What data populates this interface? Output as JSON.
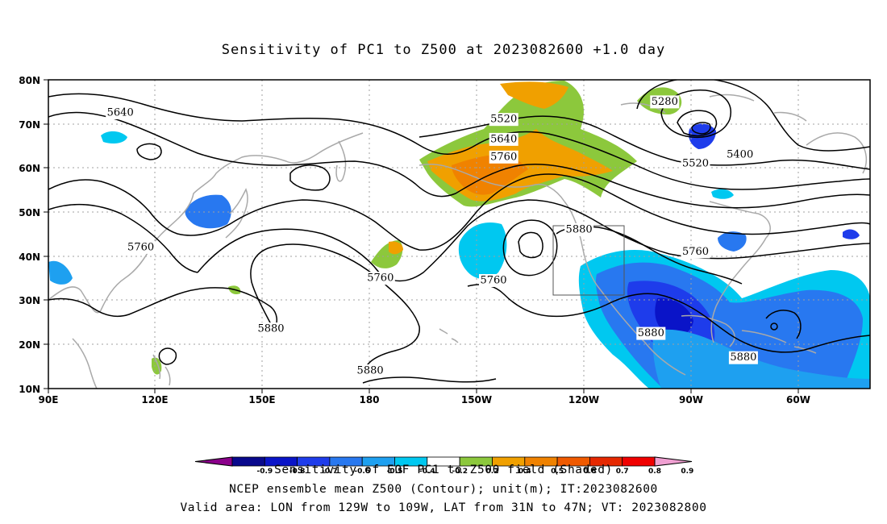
{
  "title": "Sensitivity of PC1 to Z500 at 2023082600 +1.0 day",
  "captions": {
    "line1": "Sensitivity of EOF PC1 to Z500 field (Shaded)",
    "line2": "NCEP ensemble mean Z500 (Contour); unit(m); IT:2023082600",
    "line3": "Valid area: LON from 129W to 109W, LAT from 31N to 47N; VT: 2023082800"
  },
  "axes": {
    "lat_labels": [
      "80N",
      "70N",
      "60N",
      "50N",
      "40N",
      "30N",
      "20N",
      "10N"
    ],
    "lon_labels": [
      "90E",
      "120E",
      "150E",
      "180",
      "150W",
      "120W",
      "90W",
      "60W"
    ]
  },
  "contour_labels": [
    {
      "text": "5640",
      "lon": 111,
      "lat": 72.5
    },
    {
      "text": "5520",
      "lon": -137,
      "lat": 71
    },
    {
      "text": "5640",
      "lon": -137,
      "lat": 66.5
    },
    {
      "text": "5760",
      "lon": -137,
      "lat": 62.5
    },
    {
      "text": "5280",
      "lon": -90,
      "lat": 75
    },
    {
      "text": "5400",
      "lon": -68,
      "lat": 63
    },
    {
      "text": "5520",
      "lon": -81,
      "lat": 61
    },
    {
      "text": "5760",
      "lon": 117,
      "lat": 42
    },
    {
      "text": "5760",
      "lon": -173,
      "lat": 35
    },
    {
      "text": "5760",
      "lon": -140,
      "lat": 34.5
    },
    {
      "text": "5880",
      "lon": -115,
      "lat": 46
    },
    {
      "text": "5760",
      "lon": -81,
      "lat": 41
    },
    {
      "text": "5880",
      "lon": 155,
      "lat": 23.5
    },
    {
      "text": "5880",
      "lon": -176,
      "lat": 14
    },
    {
      "text": "5880",
      "lon": -94,
      "lat": 22.5
    },
    {
      "text": "5880",
      "lon": -67,
      "lat": 17
    }
  ],
  "colorbar": {
    "labels": [
      "-0.9",
      "-0.8",
      "-0.7",
      "-0.6",
      "-0.5",
      "-0.4",
      "-0.2",
      "0.2",
      "0.4",
      "0.5",
      "0.6",
      "0.7",
      "0.8",
      "0.9"
    ],
    "colors": [
      "#8b008b",
      "#08088c",
      "#0a14c8",
      "#1e3ceb",
      "#2878f0",
      "#1ea0f0",
      "#00c8f0",
      "#ffffff",
      "#8cc83c",
      "#f0a000",
      "#f08200",
      "#f05a00",
      "#e62800",
      "#f00000",
      "#f0a0d2"
    ]
  },
  "colors": {
    "contour": "#000000",
    "coast": "#a9a9a9",
    "grid": "#a0a0a0"
  }
}
